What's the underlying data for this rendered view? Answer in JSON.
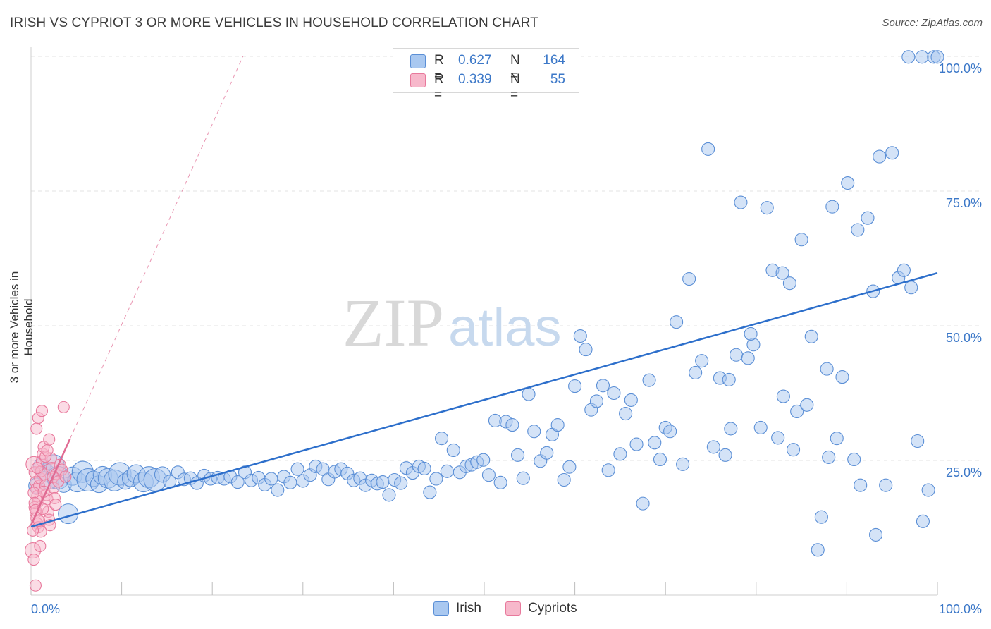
{
  "title": "IRISH VS CYPRIOT 3 OR MORE VEHICLES IN HOUSEHOLD CORRELATION CHART",
  "source": "Source: ZipAtlas.com",
  "watermark": {
    "zip": "ZIP",
    "atlas": "atlas"
  },
  "stats": [
    {
      "r_label": "R =",
      "r_value": "0.627",
      "n_label": "N =",
      "n_value": "164",
      "color": "#a9c8f0",
      "border": "#5b8fd6"
    },
    {
      "r_label": "R =",
      "r_value": "0.339",
      "n_label": "N =",
      "n_value": "55",
      "color": "#f7b8cb",
      "border": "#e8799c"
    }
  ],
  "legend": [
    {
      "label": "Irish",
      "color": "#a9c8f0",
      "border": "#5b8fd6"
    },
    {
      "label": "Cypriots",
      "color": "#f7b8cb",
      "border": "#e8799c"
    }
  ],
  "chart_data": {
    "type": "scatter",
    "title": "IRISH VS CYPRIOT 3 OR MORE VEHICLES IN HOUSEHOLD CORRELATION CHART",
    "xlabel": "",
    "ylabel": "3 or more Vehicles in Household",
    "xlim": [
      0,
      100
    ],
    "ylim": [
      0,
      100
    ],
    "x_tick_labels": [
      {
        "value": 0,
        "label": "0.0%"
      },
      {
        "value": 100,
        "label": "100.0%"
      }
    ],
    "y_tick_labels": [
      {
        "value": 25,
        "label": "25.0%"
      },
      {
        "value": 50,
        "label": "50.0%"
      },
      {
        "value": 75,
        "label": "75.0%"
      },
      {
        "value": 100,
        "label": "100.0%"
      }
    ],
    "grid": true,
    "legend_position": "bottom-center",
    "colors": {
      "irish_fill": "#a9c8f0",
      "irish_stroke": "#5b8fd6",
      "irish_line": "#2d6fcb",
      "cypriot_fill": "#f7b8cb",
      "cypriot_stroke": "#e8799c",
      "cypriot_line": "#e06a92"
    },
    "series": [
      {
        "name": "Irish",
        "trend": {
          "x": [
            0,
            100
          ],
          "y": [
            12.7,
            59.8
          ]
        },
        "points": [
          [
            0.6,
            20.3
          ],
          [
            1.2,
            23.9
          ],
          [
            1.6,
            22.7
          ],
          [
            2.0,
            21.5
          ],
          [
            2.5,
            24.1
          ],
          [
            3.0,
            21.8
          ],
          [
            3.6,
            20.5
          ],
          [
            4.1,
            15.1
          ],
          [
            4.6,
            22.1
          ],
          [
            5.1,
            21.0
          ],
          [
            5.7,
            22.9
          ],
          [
            6.3,
            21.4
          ],
          [
            6.9,
            21.6
          ],
          [
            7.5,
            20.6
          ],
          [
            7.9,
            22.2
          ],
          [
            8.5,
            21.7
          ],
          [
            9.2,
            21.3
          ],
          [
            9.8,
            22.5
          ],
          [
            10.4,
            21.1
          ],
          [
            11.0,
            21.7
          ],
          [
            11.6,
            22.5
          ],
          [
            12.4,
            21.0
          ],
          [
            13.0,
            21.9
          ],
          [
            13.7,
            21.4
          ],
          [
            14.5,
            22.4
          ],
          [
            15.3,
            21.1
          ],
          [
            16.2,
            22.8
          ],
          [
            16.9,
            21.5
          ],
          [
            17.6,
            21.7
          ],
          [
            18.3,
            20.8
          ],
          [
            19.1,
            22.2
          ],
          [
            19.8,
            21.6
          ],
          [
            20.6,
            21.8
          ],
          [
            21.3,
            21.6
          ],
          [
            22.0,
            22.0
          ],
          [
            22.8,
            21.0
          ],
          [
            23.6,
            22.8
          ],
          [
            24.3,
            21.3
          ],
          [
            25.1,
            21.8
          ],
          [
            25.8,
            20.5
          ],
          [
            26.5,
            21.6
          ],
          [
            27.2,
            19.5
          ],
          [
            27.9,
            22.0
          ],
          [
            28.6,
            20.9
          ],
          [
            29.4,
            23.4
          ],
          [
            30.0,
            21.2
          ],
          [
            30.8,
            22.3
          ],
          [
            31.4,
            23.9
          ],
          [
            32.2,
            23.4
          ],
          [
            32.8,
            21.5
          ],
          [
            33.5,
            22.9
          ],
          [
            34.2,
            23.4
          ],
          [
            34.9,
            22.6
          ],
          [
            35.6,
            21.3
          ],
          [
            36.3,
            21.7
          ],
          [
            36.9,
            20.4
          ],
          [
            37.6,
            21.3
          ],
          [
            38.2,
            20.7
          ],
          [
            38.8,
            21.0
          ],
          [
            39.5,
            18.6
          ],
          [
            40.1,
            21.4
          ],
          [
            40.8,
            20.8
          ],
          [
            41.4,
            23.6
          ],
          [
            42.1,
            22.7
          ],
          [
            42.8,
            23.9
          ],
          [
            43.4,
            23.5
          ],
          [
            44.0,
            19.1
          ],
          [
            44.7,
            21.6
          ],
          [
            45.3,
            29.1
          ],
          [
            45.9,
            23.0
          ],
          [
            46.6,
            26.9
          ],
          [
            47.3,
            22.8
          ],
          [
            48.0,
            23.9
          ],
          [
            48.6,
            24.2
          ],
          [
            49.2,
            24.7
          ],
          [
            49.9,
            25.1
          ],
          [
            50.5,
            22.3
          ],
          [
            51.2,
            32.4
          ],
          [
            51.8,
            20.9
          ],
          [
            52.4,
            32.2
          ],
          [
            53.1,
            31.6
          ],
          [
            53.7,
            26.0
          ],
          [
            54.3,
            21.7
          ],
          [
            54.9,
            37.3
          ],
          [
            55.5,
            30.4
          ],
          [
            56.2,
            24.9
          ],
          [
            56.9,
            26.4
          ],
          [
            57.5,
            29.8
          ],
          [
            58.1,
            31.6
          ],
          [
            58.8,
            21.4
          ],
          [
            59.4,
            23.8
          ],
          [
            60.0,
            38.8
          ],
          [
            60.6,
            48.1
          ],
          [
            61.2,
            45.6
          ],
          [
            61.8,
            34.4
          ],
          [
            62.4,
            36.0
          ],
          [
            63.1,
            38.9
          ],
          [
            63.7,
            23.2
          ],
          [
            64.3,
            37.5
          ],
          [
            65.0,
            26.2
          ],
          [
            65.6,
            33.7
          ],
          [
            66.2,
            36.2
          ],
          [
            66.8,
            28.0
          ],
          [
            67.5,
            17.0
          ],
          [
            68.2,
            39.9
          ],
          [
            68.8,
            28.3
          ],
          [
            69.4,
            25.2
          ],
          [
            70.0,
            31.1
          ],
          [
            70.5,
            30.4
          ],
          [
            71.2,
            50.7
          ],
          [
            71.9,
            24.3
          ],
          [
            72.6,
            58.7
          ],
          [
            73.3,
            41.3
          ],
          [
            74.0,
            43.5
          ],
          [
            74.7,
            82.8
          ],
          [
            75.3,
            27.5
          ],
          [
            76.0,
            40.3
          ],
          [
            76.6,
            26.0
          ],
          [
            77.2,
            30.9
          ],
          [
            77.8,
            44.6
          ],
          [
            78.3,
            72.9
          ],
          [
            79.1,
            44.0
          ],
          [
            79.7,
            46.5
          ],
          [
            80.5,
            31.1
          ],
          [
            81.2,
            71.9
          ],
          [
            81.8,
            60.3
          ],
          [
            82.4,
            29.2
          ],
          [
            83.0,
            36.9
          ],
          [
            83.7,
            57.9
          ],
          [
            84.5,
            34.1
          ],
          [
            85.0,
            66.0
          ],
          [
            86.1,
            48.0
          ],
          [
            87.2,
            14.5
          ],
          [
            87.8,
            42.0
          ],
          [
            88.4,
            72.1
          ],
          [
            88.9,
            29.1
          ],
          [
            89.5,
            40.5
          ],
          [
            90.1,
            76.5
          ],
          [
            90.8,
            25.2
          ],
          [
            91.5,
            20.4
          ],
          [
            92.3,
            70.0
          ],
          [
            92.9,
            56.4
          ],
          [
            93.6,
            81.4
          ],
          [
            93.2,
            11.2
          ],
          [
            94.3,
            20.4
          ],
          [
            95.0,
            82.1
          ],
          [
            95.7,
            58.9
          ],
          [
            96.3,
            60.3
          ],
          [
            97.1,
            57.1
          ],
          [
            97.8,
            28.6
          ],
          [
            98.4,
            13.7
          ],
          [
            99.0,
            19.5
          ],
          [
            96.8,
            99.9
          ],
          [
            98.3,
            99.9
          ],
          [
            99.6,
            99.9
          ],
          [
            100.0,
            99.9
          ],
          [
            91.2,
            67.8
          ],
          [
            86.8,
            8.4
          ],
          [
            88.0,
            25.6
          ],
          [
            84.1,
            27.0
          ],
          [
            85.6,
            35.3
          ],
          [
            79.4,
            48.5
          ],
          [
            77.0,
            40.0
          ],
          [
            82.9,
            59.8
          ]
        ]
      },
      {
        "name": "Cypriots",
        "trend": {
          "x": [
            0,
            4.3
          ],
          "y": [
            13.0,
            29.0
          ]
        },
        "points": [
          [
            0.2,
            8.3
          ],
          [
            0.3,
            6.6
          ],
          [
            0.5,
            1.8
          ],
          [
            0.3,
            24.3
          ],
          [
            0.4,
            22.8
          ],
          [
            0.5,
            21.0
          ],
          [
            0.6,
            19.7
          ],
          [
            0.7,
            18.4
          ],
          [
            0.8,
            17.4
          ],
          [
            0.4,
            16.3
          ],
          [
            0.5,
            15.3
          ],
          [
            0.6,
            14.3
          ],
          [
            0.7,
            13.3
          ],
          [
            0.8,
            12.6
          ],
          [
            0.9,
            20.3
          ],
          [
            1.0,
            21.7
          ],
          [
            1.1,
            23.0
          ],
          [
            1.2,
            24.9
          ],
          [
            1.3,
            26.2
          ],
          [
            1.4,
            27.5
          ],
          [
            0.6,
            30.9
          ],
          [
            0.8,
            32.9
          ],
          [
            1.2,
            34.2
          ],
          [
            1.5,
            22.4
          ],
          [
            1.6,
            20.4
          ],
          [
            1.7,
            18.6
          ],
          [
            1.8,
            17.8
          ],
          [
            1.9,
            15.5
          ],
          [
            2.0,
            14.0
          ],
          [
            2.1,
            13.0
          ],
          [
            2.2,
            25.4
          ],
          [
            2.3,
            23.6
          ],
          [
            2.4,
            21.9
          ],
          [
            2.5,
            19.9
          ],
          [
            2.6,
            18.0
          ],
          [
            2.7,
            16.8
          ],
          [
            2.8,
            22.5
          ],
          [
            3.0,
            21.1
          ],
          [
            3.2,
            24.2
          ],
          [
            3.4,
            23.3
          ],
          [
            3.6,
            34.9
          ],
          [
            3.8,
            22.0
          ],
          [
            0.3,
            19.0
          ],
          [
            0.4,
            17.1
          ],
          [
            0.5,
            15.8
          ],
          [
            0.9,
            13.8
          ],
          [
            1.1,
            11.8
          ],
          [
            1.3,
            16.0
          ],
          [
            1.4,
            19.2
          ],
          [
            1.6,
            25.7
          ],
          [
            1.8,
            26.9
          ],
          [
            2.0,
            28.9
          ],
          [
            0.7,
            23.6
          ],
          [
            1.0,
            9.1
          ],
          [
            0.2,
            12.0
          ]
        ]
      }
    ]
  }
}
